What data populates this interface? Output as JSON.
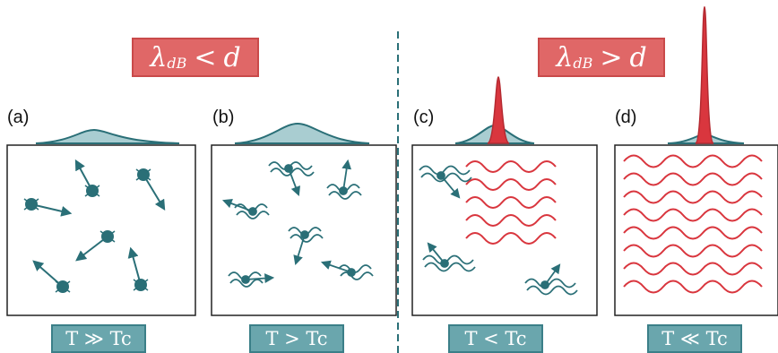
{
  "regimes": [
    {
      "symbol": "λ",
      "sub": "dB",
      "relation": "<",
      "var": "d"
    },
    {
      "symbol": "λ",
      "sub": "dB",
      "relation": ">",
      "var": "d"
    }
  ],
  "panels": [
    {
      "label": "(a)",
      "temperature": "T ≫ Tc"
    },
    {
      "label": "(b)",
      "temperature": "T > Tc"
    },
    {
      "label": "(c)",
      "temperature": "T < Tc"
    },
    {
      "label": "(d)",
      "temperature": "T ≪ Tc"
    }
  ],
  "colors": {
    "teal": "#2a6f77",
    "teal_light": "#6aa6ad",
    "red": "#d9363e",
    "divider": "#2a6f77"
  }
}
